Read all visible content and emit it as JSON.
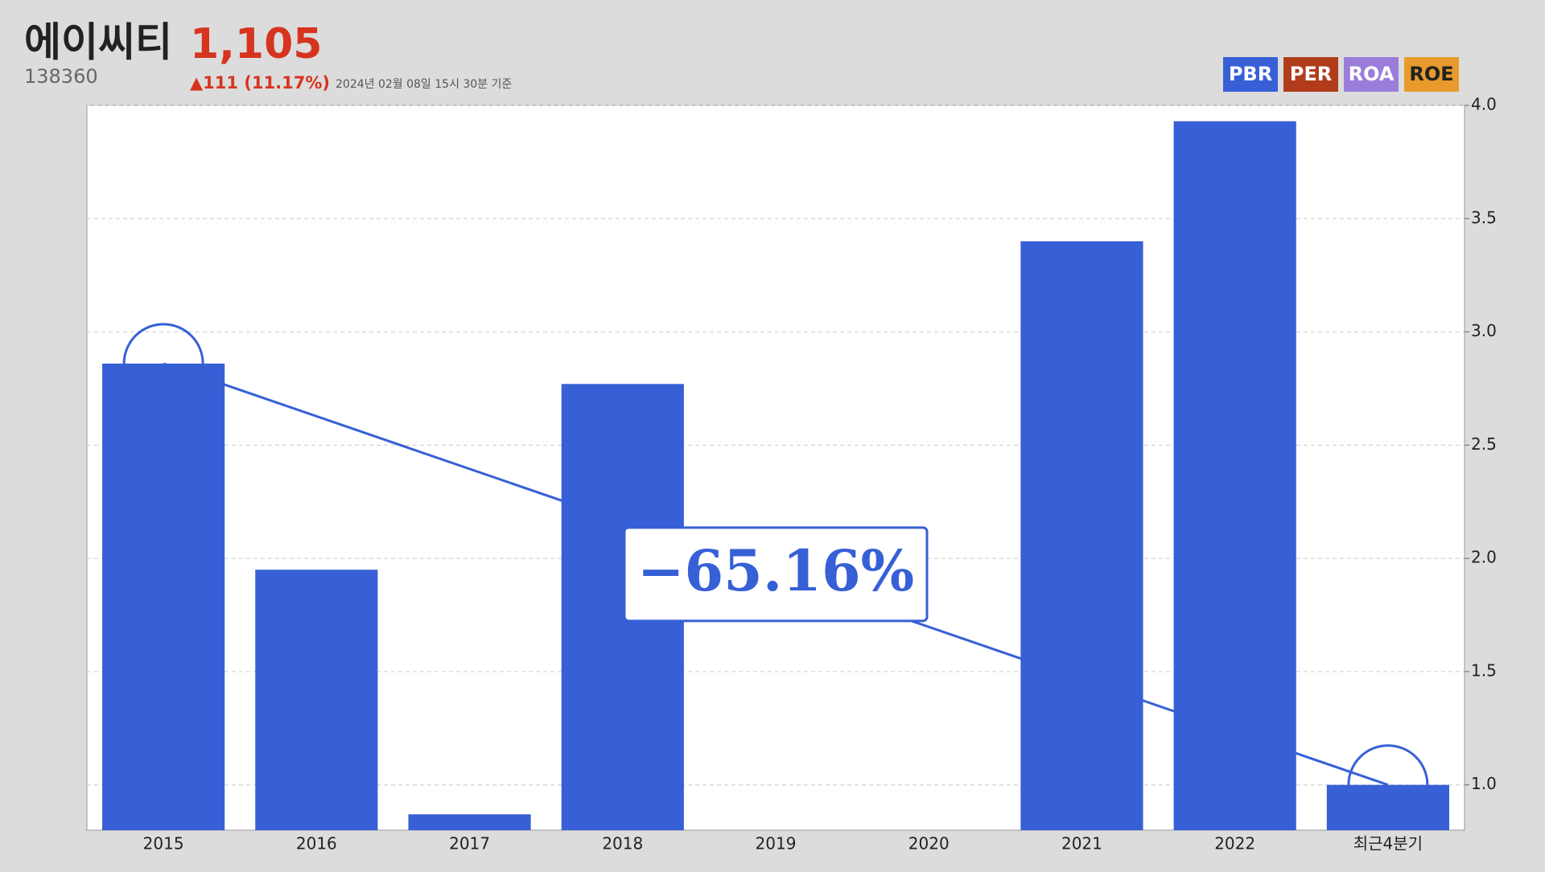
{
  "header": {
    "title": "에이씨티",
    "price": "1,105",
    "code": "138360",
    "change": "▲111 (11.17%)",
    "timestamp": "2024년 02월 08일 15시 30분 기준"
  },
  "chart_data": {
    "type": "bar",
    "categories": [
      "2015",
      "2016",
      "2017",
      "2018",
      "2019",
      "2020",
      "2021",
      "2022",
      "최근4분기"
    ],
    "series": [
      {
        "name": "PBR",
        "color": "#3760d6",
        "values": [
          2.86,
          1.95,
          0.87,
          2.77,
          null,
          null,
          3.4,
          3.93,
          1.0
        ]
      }
    ],
    "tabs": [
      {
        "label": "PER",
        "color": "#b03c1c"
      },
      {
        "label": "ROA",
        "color": "#9a7ddb"
      },
      {
        "label": "ROE",
        "color": "#e89a2c"
      }
    ],
    "annotation": "−65.16%",
    "ylim": [
      0.8,
      4.0
    ],
    "yticks": [
      {
        "value": 1,
        "label": "1.0"
      },
      {
        "value": 1.5,
        "label": "1.5"
      },
      {
        "value": 2,
        "label": "2.0"
      },
      {
        "value": 2.5,
        "label": "2.5"
      },
      {
        "value": 3,
        "label": "3.0"
      },
      {
        "value": 3.5,
        "label": "3.5"
      },
      {
        "value": 4,
        "label": "4.0"
      }
    ],
    "grid": true
  }
}
